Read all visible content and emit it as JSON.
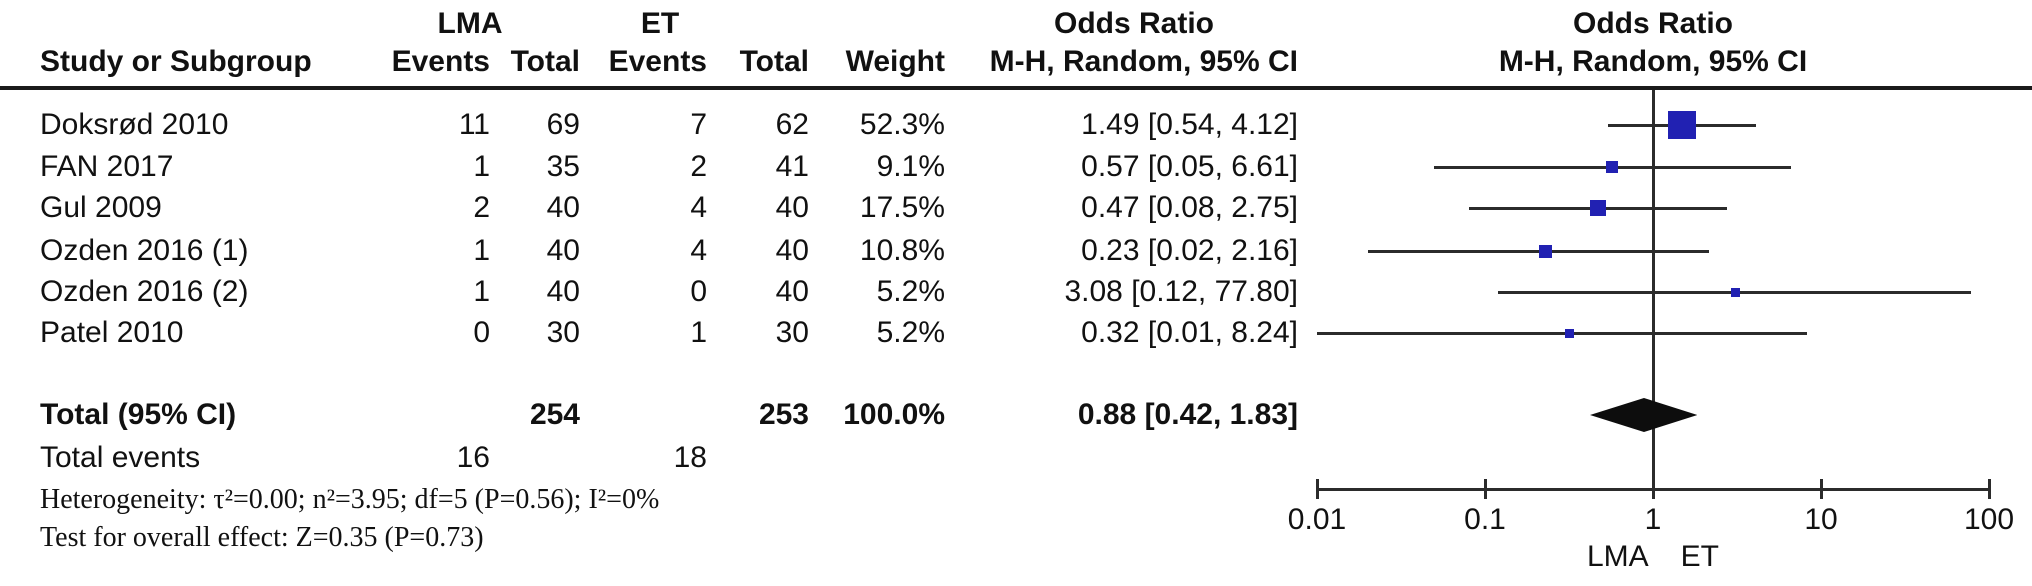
{
  "table": {
    "group1_label": "LMA",
    "group2_label": "ET",
    "or_col_header_line1": "Odds Ratio",
    "or_col_header_line2": "M-H, Random, 95% CI",
    "plot_header_line1": "Odds Ratio",
    "plot_header_line2": "M-H, Random, 95% CI",
    "col_headers": {
      "study": "Study or Subgroup",
      "events1": "Events",
      "total1": "Total",
      "events2": "Events",
      "total2": "Total",
      "weight": "Weight"
    },
    "rows": [
      {
        "study": "Doksrød 2010",
        "events1": "11",
        "total1": "69",
        "events2": "7",
        "total2": "62",
        "weight": "52.3%",
        "or_ci": "1.49 [0.54, 4.12]"
      },
      {
        "study": "FAN 2017",
        "events1": "1",
        "total1": "35",
        "events2": "2",
        "total2": "41",
        "weight": "9.1%",
        "or_ci": "0.57 [0.05, 6.61]"
      },
      {
        "study": "Gul 2009",
        "events1": "2",
        "total1": "40",
        "events2": "4",
        "total2": "40",
        "weight": "17.5%",
        "or_ci": "0.47 [0.08, 2.75]"
      },
      {
        "study": "Ozden 2016 (1)",
        "events1": "1",
        "total1": "40",
        "events2": "4",
        "total2": "40",
        "weight": "10.8%",
        "or_ci": "0.23 [0.02, 2.16]"
      },
      {
        "study": "Ozden 2016 (2)",
        "events1": "1",
        "total1": "40",
        "events2": "0",
        "total2": "40",
        "weight": "5.2%",
        "or_ci": "3.08 [0.12, 77.80]"
      },
      {
        "study": "Patel 2010",
        "events1": "0",
        "total1": "30",
        "events2": "1",
        "total2": "30",
        "weight": "5.2%",
        "or_ci": "0.32 [0.01, 8.24]"
      }
    ],
    "total_row": {
      "label": "Total (95% CI)",
      "total1": "254",
      "total2": "253",
      "weight": "100.0%",
      "or_ci": "0.88 [0.42, 1.83]"
    },
    "total_events_row": {
      "label": "Total events",
      "events1": "16",
      "events2": "18"
    },
    "heterogeneity": "Heterogeneity: τ²=0.00; n²=3.95; df=5 (P=0.56); I²=0%",
    "overall_effect": "Test for overall effect: Z=0.35 (P=0.73)"
  },
  "chart_data": {
    "type": "forest",
    "x_scale": "log10",
    "x_range": [
      0.01,
      100
    ],
    "x_ticks": [
      0.01,
      0.1,
      1,
      10,
      100
    ],
    "x_tick_labels": [
      "0.01",
      "0.1",
      "1",
      "10",
      "100"
    ],
    "null_line": 1,
    "favours_left": "LMA",
    "favours_right": "ET",
    "studies": [
      {
        "name": "Doksrød 2010",
        "or": 1.49,
        "ci_low": 0.54,
        "ci_high": 4.12,
        "weight_pct": 52.3
      },
      {
        "name": "FAN 2017",
        "or": 0.57,
        "ci_low": 0.05,
        "ci_high": 6.61,
        "weight_pct": 9.1
      },
      {
        "name": "Gul 2009",
        "or": 0.47,
        "ci_low": 0.08,
        "ci_high": 2.75,
        "weight_pct": 17.5
      },
      {
        "name": "Ozden 2016 (1)",
        "or": 0.23,
        "ci_low": 0.02,
        "ci_high": 2.16,
        "weight_pct": 10.8
      },
      {
        "name": "Ozden 2016 (2)",
        "or": 3.08,
        "ci_low": 0.12,
        "ci_high": 77.8,
        "weight_pct": 5.2
      },
      {
        "name": "Patel 2010",
        "or": 0.32,
        "ci_low": 0.01,
        "ci_high": 8.24,
        "weight_pct": 5.2
      }
    ],
    "total": {
      "label": "Total (95% CI)",
      "or": 0.88,
      "ci_low": 0.42,
      "ci_high": 1.83
    },
    "marker_color": "#2121b2",
    "diamond_color": "#0d0d0d",
    "line_color": "#2b2b2b"
  }
}
